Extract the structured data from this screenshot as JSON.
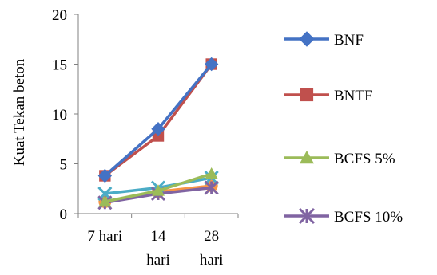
{
  "chart_data": {
    "type": "line",
    "title": "",
    "xlabel": "",
    "ylabel": "Kuat Tekan beton",
    "ylim": [
      0,
      20
    ],
    "yticks": [
      0,
      5,
      10,
      15,
      20
    ],
    "categories": [
      [
        "7 hari"
      ],
      [
        "14",
        "hari"
      ],
      [
        "28",
        "hari"
      ]
    ],
    "grid": false,
    "legend_position": "right",
    "series": [
      {
        "name": "BNF",
        "color": "#4472C4",
        "marker": "diamond",
        "values": [
          3.8,
          8.5,
          15.0
        ]
      },
      {
        "name": "BNTF",
        "color": "#C0504D",
        "marker": "square",
        "values": [
          3.8,
          7.8,
          15.0
        ]
      },
      {
        "name": "BCFS 5%",
        "color": "#9BBB59",
        "marker": "triangle",
        "values": [
          1.2,
          2.3,
          4.0
        ]
      },
      {
        "name": "BCFS 10%",
        "color": "#8064A2",
        "marker": "x-star",
        "values": [
          1.1,
          2.0,
          2.6
        ]
      },
      {
        "name": "",
        "color": "#4BACC6",
        "marker": "x",
        "values": [
          2.0,
          2.6,
          3.6
        ]
      },
      {
        "name": "",
        "color": "#F79646",
        "marker": "circle",
        "values": [
          1.2,
          2.2,
          2.8
        ]
      }
    ]
  }
}
